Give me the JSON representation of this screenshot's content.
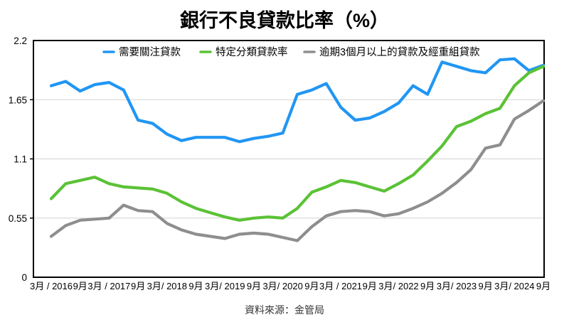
{
  "title": "銀行不良貸款比率（%）",
  "source": "資料來源：金管局",
  "colors": {
    "background": "#ffffff",
    "axis": "#000000",
    "grid": "#dcdcdc",
    "blue": "#2196f3",
    "green": "#5bc236",
    "gray": "#8e8e8e"
  },
  "legend": {
    "items": [
      {
        "label": "需要關注貸款",
        "color": "#2196f3"
      },
      {
        "label": "特定分類貸款率",
        "color": "#5bc236"
      },
      {
        "label": "逾期3個月以上的貸款及經重組貸款",
        "color": "#8e8e8e"
      }
    ]
  },
  "chart_data": {
    "type": "line",
    "title": "銀行不良貸款比率（%）",
    "xlabel": "",
    "ylabel": "",
    "ylim": [
      0,
      2.2
    ],
    "yticks": [
      {
        "value": 0,
        "label": "0"
      },
      {
        "value": 0.55,
        "label": "0.55"
      },
      {
        "value": 1.1,
        "label": "1.1"
      },
      {
        "value": 1.65,
        "label": "1.65"
      },
      {
        "value": 2.2,
        "label": "2.2"
      }
    ],
    "grid": "horizontal",
    "legend_position": "top",
    "x_labels": [
      "3月 / 2016",
      "9月",
      "3月 / 2017",
      "9月",
      "3月/ 2018",
      "9月",
      "3月/ 2019",
      "9月",
      "3月/ 2020",
      "9月",
      "3月 / 2021",
      "9月",
      "3月/ 2022",
      "9月",
      "3月/ 2023",
      "9月",
      "3月/ 2024",
      "9月"
    ],
    "points_per_label": 2,
    "frequency": "quarterly",
    "series": [
      {
        "name": "需要關注貸款",
        "color": "#2196f3",
        "values": [
          1.78,
          1.82,
          1.73,
          1.79,
          1.81,
          1.74,
          1.46,
          1.43,
          1.33,
          1.27,
          1.3,
          1.3,
          1.3,
          1.26,
          1.29,
          1.31,
          1.34,
          1.7,
          1.74,
          1.8,
          1.58,
          1.46,
          1.48,
          1.54,
          1.62,
          1.78,
          1.7,
          2.0,
          1.96,
          1.92,
          1.9,
          2.02,
          2.03,
          1.92,
          1.97
        ]
      },
      {
        "name": "特定分類貸款率",
        "color": "#5bc236",
        "values": [
          0.73,
          0.87,
          0.9,
          0.93,
          0.87,
          0.84,
          0.83,
          0.82,
          0.78,
          0.7,
          0.64,
          0.6,
          0.56,
          0.53,
          0.55,
          0.56,
          0.55,
          0.64,
          0.79,
          0.84,
          0.9,
          0.88,
          0.84,
          0.8,
          0.87,
          0.95,
          1.08,
          1.22,
          1.4,
          1.45,
          1.52,
          1.57,
          1.78,
          1.9,
          1.96
        ]
      },
      {
        "name": "逾期3個月以上的貸款及經重組貸款",
        "color": "#8e8e8e",
        "values": [
          0.38,
          0.48,
          0.53,
          0.54,
          0.55,
          0.67,
          0.62,
          0.61,
          0.5,
          0.44,
          0.4,
          0.38,
          0.36,
          0.4,
          0.41,
          0.4,
          0.37,
          0.34,
          0.47,
          0.57,
          0.61,
          0.62,
          0.61,
          0.57,
          0.59,
          0.64,
          0.7,
          0.78,
          0.88,
          1.0,
          1.2,
          1.23,
          1.47,
          1.55,
          1.64
        ]
      }
    ]
  }
}
